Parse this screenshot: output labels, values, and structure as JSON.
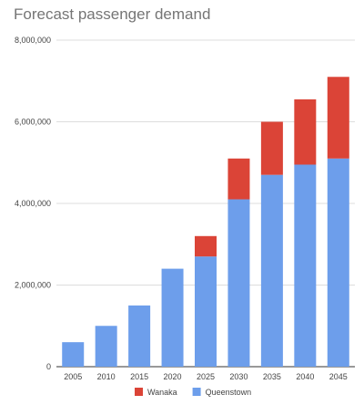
{
  "chart_data": {
    "type": "bar",
    "stacked": true,
    "title": "Forecast passenger demand",
    "xlabel": "",
    "ylabel": "",
    "categories": [
      "2005",
      "2010",
      "2015",
      "2020",
      "2025",
      "2030",
      "2035",
      "2040",
      "2045"
    ],
    "series": [
      {
        "name": "Queenstown",
        "color": "#6d9eeb",
        "values": [
          600000,
          1000000,
          1500000,
          2400000,
          2700000,
          4100000,
          4700000,
          4950000,
          5100000
        ]
      },
      {
        "name": "Wanaka",
        "color": "#db4437",
        "values": [
          0,
          0,
          0,
          0,
          500000,
          1000000,
          1300000,
          1600000,
          2000000
        ]
      }
    ],
    "ylim": [
      0,
      8000000
    ],
    "yticks": [
      0,
      2000000,
      4000000,
      6000000,
      8000000
    ],
    "ytick_labels": [
      "0",
      "2,000,000",
      "4,000,000",
      "6,000,000",
      "8,000,000"
    ],
    "grid": true,
    "legend": {
      "position": "bottom",
      "order": [
        "Wanaka",
        "Queenstown"
      ]
    }
  }
}
